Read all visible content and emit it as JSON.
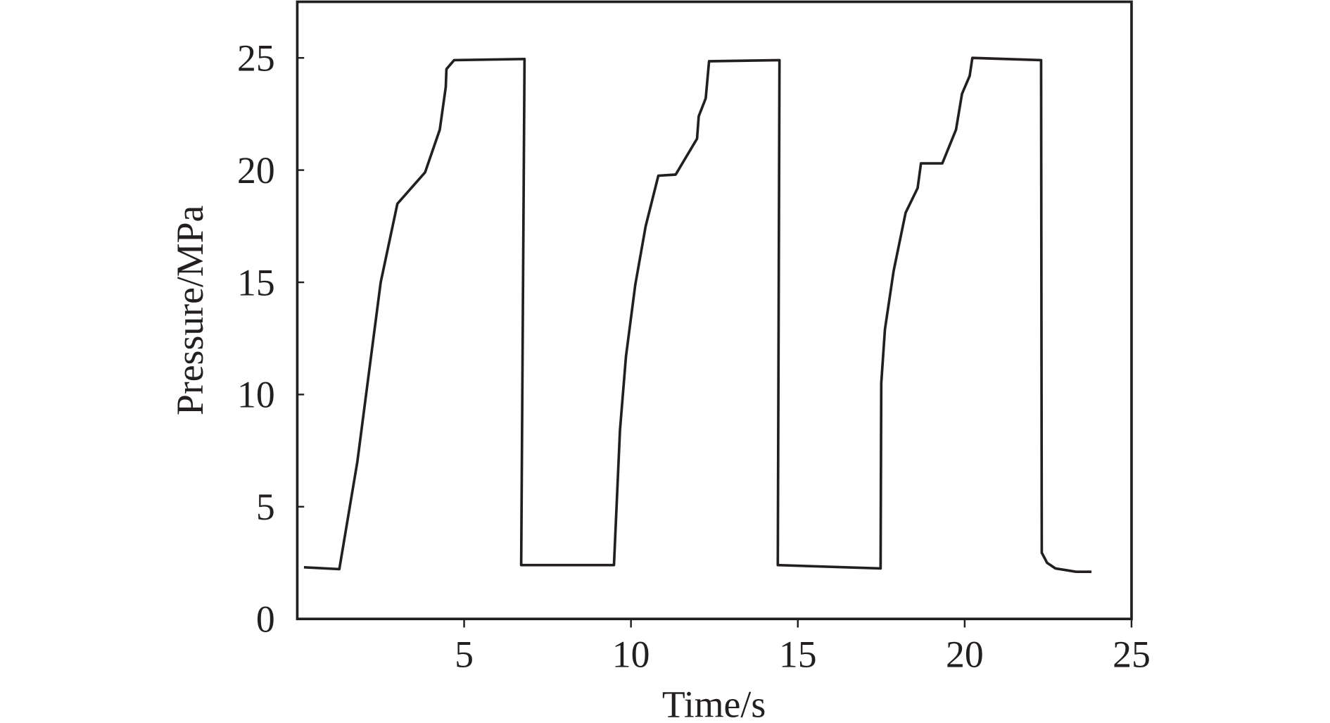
{
  "chart_data": {
    "type": "line",
    "x_label": "Time/s",
    "y_label": "Pressure/MPa",
    "x": [
      0.2,
      1.26,
      1.8,
      2.5,
      3.0,
      3.83,
      4.27,
      4.45,
      4.47,
      4.7,
      6.81,
      6.71,
      9.49,
      9.67,
      9.85,
      10.13,
      10.44,
      10.82,
      11.34,
      11.98,
      12.03,
      12.24,
      12.34,
      14.45,
      14.4,
      17.48,
      17.5,
      17.61,
      17.87,
      18.23,
      18.59,
      18.69,
      19.33,
      19.74,
      19.92,
      20.15,
      20.23,
      22.29,
      22.31,
      22.47,
      22.72,
      23.34,
      23.8
    ],
    "series": [
      {
        "color": "#231f20",
        "values": [
          2.3,
          2.22,
          7.0,
          15.0,
          18.5,
          19.9,
          21.8,
          23.7,
          24.5,
          24.9,
          24.95,
          2.4,
          2.4,
          8.4,
          11.7,
          14.9,
          17.5,
          19.75,
          19.8,
          21.4,
          22.4,
          23.2,
          24.85,
          24.9,
          2.4,
          2.25,
          10.5,
          12.9,
          15.5,
          18.1,
          19.2,
          20.3,
          20.3,
          21.8,
          23.4,
          24.2,
          25.0,
          24.9,
          2.95,
          2.5,
          2.25,
          2.1,
          2.1
        ]
      }
    ],
    "xlim": [
      0,
      25
    ],
    "xticks": [
      5,
      10,
      15,
      20,
      25
    ],
    "ylim": [
      0,
      27.5
    ],
    "yticks": [
      0,
      5,
      10,
      15,
      20,
      25
    ]
  }
}
